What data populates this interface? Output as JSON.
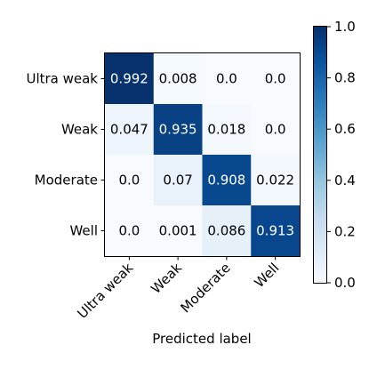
{
  "chart_data": {
    "type": "heatmap",
    "xlabel": "Predicted label",
    "ylabel": "",
    "row_labels": [
      "Ultra weak",
      "Weak",
      "Moderate",
      "Well"
    ],
    "col_labels": [
      "Ultra weak",
      "Weak",
      "Moderate",
      "Well"
    ],
    "values": [
      [
        0.992,
        0.008,
        0.0,
        0.0
      ],
      [
        0.047,
        0.935,
        0.018,
        0.0
      ],
      [
        0.0,
        0.07,
        0.908,
        0.022
      ],
      [
        0.0,
        0.001,
        0.086,
        0.913
      ]
    ],
    "cell_labels": [
      [
        "0.992",
        "0.008",
        "0.0",
        "0.0"
      ],
      [
        "0.047",
        "0.935",
        "0.018",
        "0.0"
      ],
      [
        "0.0",
        "0.07",
        "0.908",
        "0.022"
      ],
      [
        "0.0",
        "0.001",
        "0.086",
        "0.913"
      ]
    ],
    "colorbar": {
      "range": [
        0.0,
        1.0
      ],
      "ticks": [
        "0.0",
        "0.2",
        "0.4",
        "0.6",
        "0.8",
        "1.0"
      ],
      "colormap": "Blues",
      "low_color": "#f7fbff",
      "high_color": "#08306b"
    },
    "x_tick_rotation": 45,
    "grid": false
  }
}
